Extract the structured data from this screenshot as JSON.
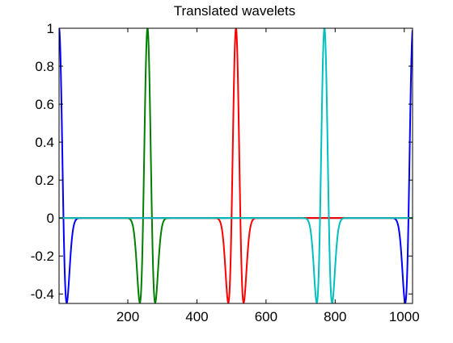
{
  "chart_data": {
    "type": "line",
    "title": "Translated wavelets",
    "xlabel": "",
    "ylabel": "",
    "xlim": [
      1,
      1024
    ],
    "ylim": [
      -0.45,
      1
    ],
    "grid": false,
    "legend": null,
    "x_ticks": [
      200,
      400,
      600,
      800,
      1000
    ],
    "x_tick_labels": [
      "200",
      "400",
      "600",
      "800",
      "1000"
    ],
    "y_ticks": [
      1,
      0.8,
      0.6,
      0.4,
      0.2,
      0,
      -0.2,
      -0.4
    ],
    "y_tick_labels": [
      "1",
      "0.8",
      "0.6",
      "0.4",
      "0.2",
      "0",
      "-0.2",
      "-0.4"
    ],
    "series": [
      {
        "color": "#0000ff",
        "wavelet": "mexican-hat",
        "center": 1,
        "width": 12.8,
        "wraps": true,
        "x": [
          1,
          4,
          7,
          10,
          13,
          16,
          19,
          22,
          26,
          30,
          35,
          40,
          46,
          52,
          60,
          70,
          85,
          100
        ],
        "y": [
          1,
          0.92,
          0.73,
          0.45,
          0.15,
          -0.12,
          -0.31,
          -0.42,
          -0.44,
          -0.38,
          -0.27,
          -0.16,
          -0.08,
          -0.03,
          -0.01,
          0,
          0,
          0
        ]
      },
      {
        "color": "#007f00",
        "wavelet": "mexican-hat",
        "center": 257,
        "width": 12.8,
        "wraps": false,
        "x": [
          200,
          215,
          225,
          232,
          238,
          243,
          247,
          250,
          253,
          257,
          261,
          264,
          267,
          271,
          276,
          282,
          289,
          299,
          315
        ],
        "y": [
          0,
          -0.02,
          -0.12,
          -0.27,
          -0.41,
          -0.44,
          -0.36,
          -0.2,
          0.25,
          1,
          0.25,
          -0.2,
          -0.36,
          -0.44,
          -0.41,
          -0.27,
          -0.12,
          -0.02,
          0
        ]
      },
      {
        "color": "#ff0000",
        "wavelet": "mexican-hat",
        "center": 513,
        "width": 12.8,
        "wraps": false,
        "x": [
          455,
          470,
          481,
          488,
          494,
          499,
          503,
          506,
          509,
          513,
          517,
          520,
          523,
          527,
          532,
          538,
          545,
          556,
          570
        ],
        "y": [
          0,
          -0.02,
          -0.12,
          -0.27,
          -0.41,
          -0.44,
          -0.36,
          -0.2,
          0.25,
          1,
          0.25,
          -0.2,
          -0.36,
          -0.44,
          -0.41,
          -0.27,
          -0.12,
          -0.02,
          0
        ]
      },
      {
        "color": "#00bfbf",
        "wavelet": "mexican-hat",
        "center": 769,
        "width": 12.8,
        "wraps": false,
        "x": [
          710,
          725,
          737,
          744,
          750,
          755,
          759,
          762,
          765,
          769,
          773,
          776,
          779,
          783,
          788,
          794,
          801,
          812,
          825
        ],
        "y": [
          0,
          -0.02,
          -0.12,
          -0.27,
          -0.41,
          -0.44,
          -0.36,
          -0.2,
          0.25,
          1,
          0.25,
          -0.2,
          -0.36,
          -0.44,
          -0.41,
          -0.27,
          -0.12,
          -0.02,
          0
        ]
      }
    ]
  }
}
